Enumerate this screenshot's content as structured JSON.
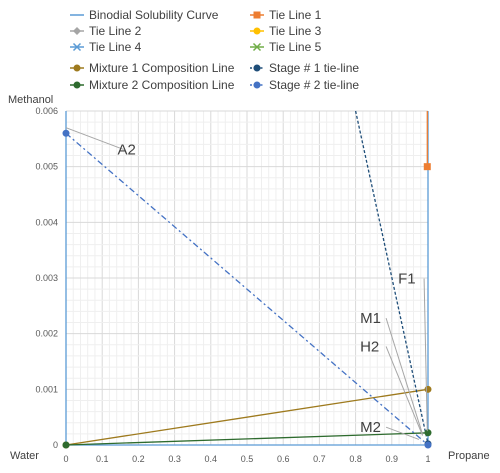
{
  "chart_data": {
    "type": "line",
    "xlabel_left": "Water",
    "xlabel_right": "Propane",
    "ylabel": "Methanol",
    "xlim": [
      0,
      1
    ],
    "ylim": [
      0,
      0.006
    ],
    "x_ticks": [
      "0",
      "0.1",
      "0.2",
      "0.3",
      "0.4",
      "0.5",
      "0.6",
      "0.7",
      "0.8",
      "0.9",
      "1"
    ],
    "y_ticks": [
      "0",
      "0.001",
      "0.002",
      "0.003",
      "0.004",
      "0.005",
      "0.006"
    ],
    "grid": true,
    "legend_position": "top",
    "series": [
      {
        "name": "Binodial Solubility Curve",
        "color": "#5b9bd5",
        "marker": "none",
        "dash": "none",
        "points": [
          [
            0,
            0.006
          ],
          [
            0,
            0
          ],
          [
            1,
            0
          ],
          [
            1,
            0.006
          ]
        ]
      },
      {
        "name": "Tie Line 1",
        "color": "#ed7d31",
        "marker": "square",
        "dash": "none",
        "points": [
          [
            0.998,
            0.005
          ],
          [
            0.998,
            0.006
          ]
        ]
      },
      {
        "name": "Tie Line 2",
        "color": "#a5a5a5",
        "marker": "diamond",
        "dash": "none",
        "points": []
      },
      {
        "name": "Tie Line 3",
        "color": "#ffc000",
        "marker": "circle",
        "dash": "none",
        "points": []
      },
      {
        "name": "Tie Line 4",
        "color": "#5b9bd5",
        "marker": "x",
        "dash": "none",
        "points": []
      },
      {
        "name": "Tie Line 5",
        "color": "#70ad47",
        "marker": "x",
        "dash": "none",
        "points": []
      },
      {
        "name": "Mixture 1 Composition Line",
        "color": "#9e7a1e",
        "marker": "circle",
        "dash": "none",
        "points": [
          [
            0,
            0
          ],
          [
            1,
            0.001
          ]
        ]
      },
      {
        "name": "Stage # 1 tie-line",
        "color": "#1f4e79",
        "marker": "circle",
        "dash": "3,2",
        "points": [
          [
            0.8,
            0.006
          ],
          [
            1,
            2e-05
          ]
        ]
      },
      {
        "name": "Mixture 2 Composition Line",
        "color": "#2e6b2e",
        "marker": "circle",
        "dash": "none",
        "points": [
          [
            0,
            0
          ],
          [
            1,
            0.00022
          ]
        ]
      },
      {
        "name": "Stage # 2 tie-line",
        "color": "#4472c4",
        "marker": "circle",
        "dash": "6,3,2,3",
        "points": [
          [
            0,
            0.0056
          ],
          [
            1,
            0
          ]
        ]
      }
    ],
    "annotations": [
      {
        "label": "A2",
        "x": 0.17,
        "y": 0.00522,
        "target_x": 0,
        "target_y": 0.0057
      },
      {
        "label": "F1",
        "x": 0.945,
        "y": 0.0029,
        "target_x": 0.998,
        "target_y": 0.00025
      },
      {
        "label": "M1",
        "x": 0.84,
        "y": 0.00219,
        "target_x": 0.985,
        "target_y": 0.00019
      },
      {
        "label": "H2",
        "x": 0.84,
        "y": 0.00168,
        "target_x": 0.985,
        "target_y": 0.00017
      },
      {
        "label": "M2",
        "x": 0.84,
        "y": 0.00023,
        "target_x": 0.975,
        "target_y": 0.0001
      }
    ]
  }
}
